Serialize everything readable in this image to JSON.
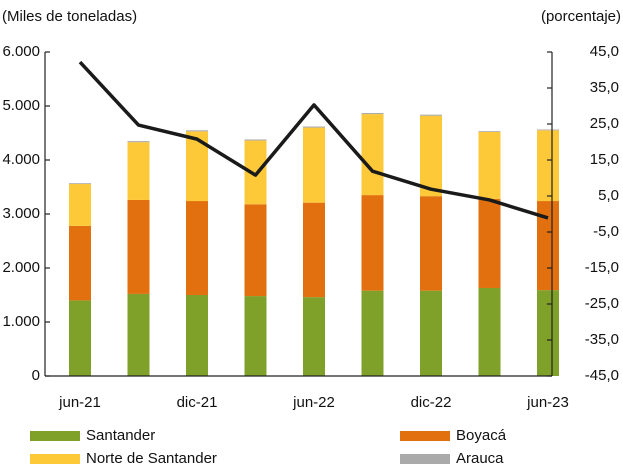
{
  "chart_data": {
    "type": "bar",
    "stacked": true,
    "y_label": "(Miles de toneladas)",
    "y2_label": "(porcentaje)",
    "categories": [
      "jun-21",
      null,
      "dic-21",
      null,
      "jun-22",
      null,
      "dic-22",
      null,
      "jun-23"
    ],
    "series": [
      {
        "name": "Santander",
        "color": "#7fa12a",
        "values": [
          1400,
          1520,
          1500,
          1480,
          1460,
          1580,
          1580,
          1630,
          1590
        ]
      },
      {
        "name": "Boyacá",
        "color": "#e3700e",
        "values": [
          1380,
          1740,
          1740,
          1700,
          1750,
          1770,
          1750,
          1650,
          1650
        ]
      },
      {
        "name": "Norte de Santander",
        "color": "#fdc939",
        "values": [
          775,
          1070,
          1290,
          1180,
          1390,
          1500,
          1490,
          1240,
          1310
        ]
      },
      {
        "name": "Arauca",
        "color": "#aaaaaa",
        "values": [
          15,
          20,
          20,
          20,
          20,
          20,
          20,
          15,
          15
        ]
      },
      {
        "type": "line",
        "axis": "y2",
        "color": "#1a1a1a",
        "values": [
          42.2,
          24.7,
          20.8,
          10.8,
          30.3,
          11.9,
          6.9,
          3.9,
          -1.1
        ]
      }
    ],
    "ylim": [
      0,
      6000
    ],
    "yticks": [
      0,
      {
        "value": 1000,
        "label": "1.000"
      },
      {
        "value": 2000,
        "label": "2.000"
      },
      {
        "value": 3000,
        "label": "3.000"
      },
      {
        "value": 4000,
        "label": "4.000"
      },
      {
        "value": 5000,
        "label": "5.000"
      },
      {
        "value": 6000,
        "label": "6.000"
      }
    ],
    "y2lim": [
      -45,
      45
    ],
    "y2ticks": [
      {
        "value": -45,
        "label": "-45,0"
      },
      {
        "value": -35,
        "label": "-35,0"
      },
      {
        "value": -25,
        "label": "-25,0"
      },
      {
        "value": -15,
        "label": "-15,0"
      },
      {
        "value": -5,
        "label": "-5,0"
      },
      {
        "value": 5,
        "label": "5,0"
      },
      {
        "value": 15,
        "label": "15,0"
      },
      {
        "value": 25,
        "label": "25,0"
      },
      {
        "value": 35,
        "label": "35,0"
      },
      {
        "value": 45,
        "label": "45,0"
      }
    ],
    "grid": false,
    "legend": "bottom"
  }
}
